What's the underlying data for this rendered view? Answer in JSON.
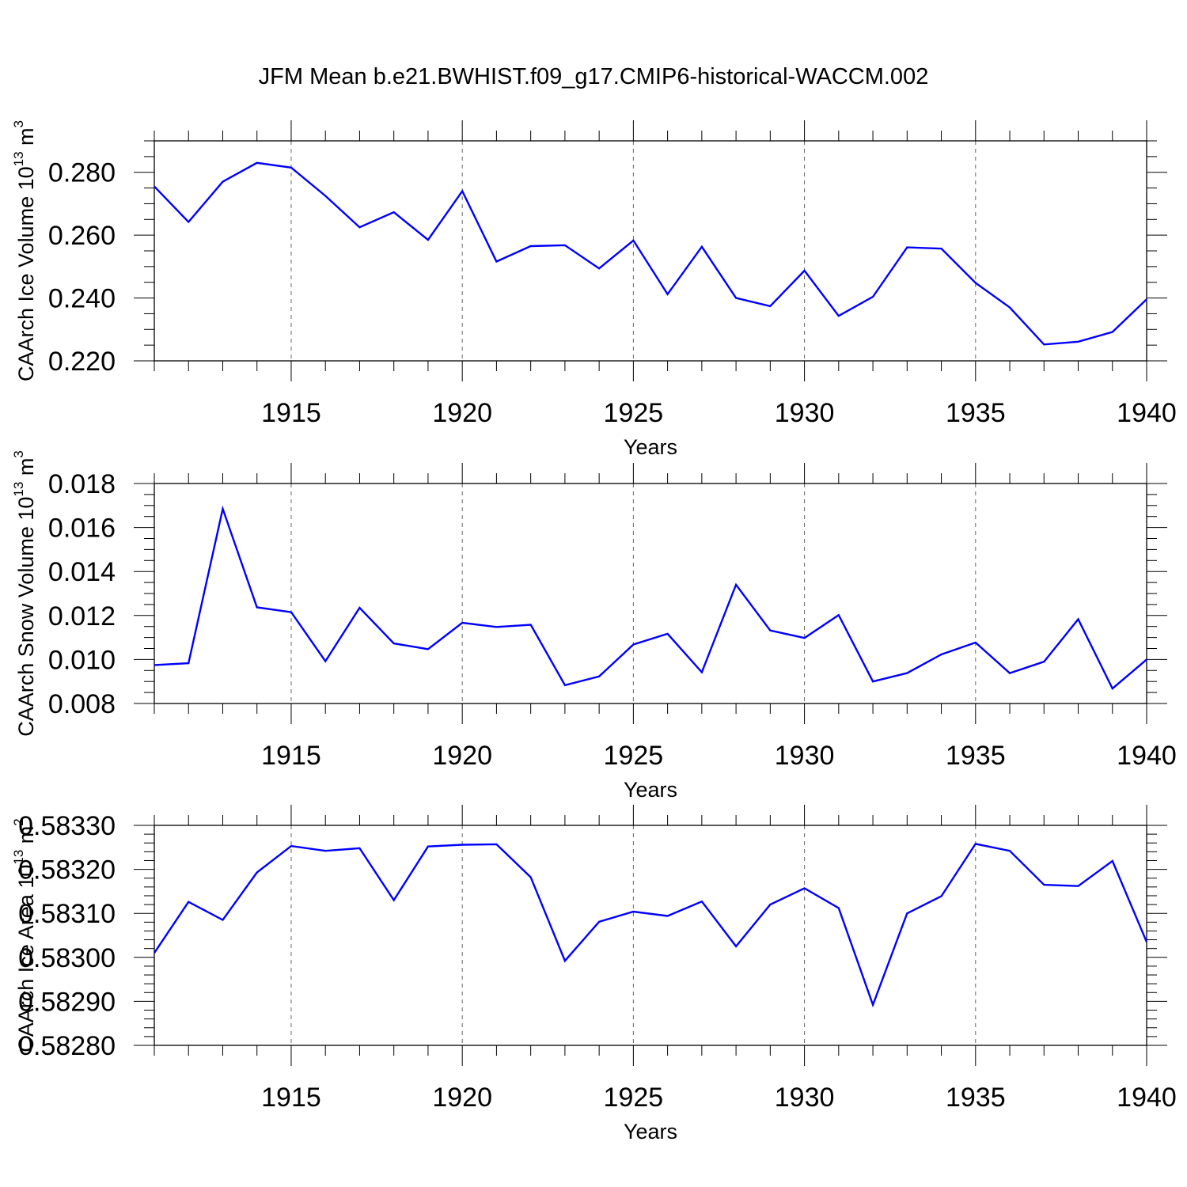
{
  "title": "JFM Mean b.e21.BWHIST.f09_g17.CMIP6-historical-WACCM.002",
  "chart_data": [
    {
      "type": "line",
      "ylabel": {
        "main": "CAArch Ice Volume 10",
        "exp": "13",
        "unit": "m",
        "unit_exp": "3"
      },
      "xlabel": "Years",
      "xlim": [
        1911,
        1940
      ],
      "ylim": [
        0.22,
        0.29
      ],
      "x_ticks": [
        1915,
        1920,
        1925,
        1930,
        1935,
        1940
      ],
      "x_tick_labels": [
        "1915",
        "1920",
        "1925",
        "1930",
        "1935",
        "1940"
      ],
      "y_ticks": [
        0.22,
        0.24,
        0.26,
        0.28
      ],
      "y_tick_labels": [
        "0.220",
        "0.240",
        "0.260",
        "0.280"
      ],
      "y_minor_step": 0.005,
      "grid": "dashed vertical at major x ticks",
      "color": "#0000ff",
      "x": [
        1911,
        1912,
        1913,
        1914,
        1915,
        1916,
        1917,
        1918,
        1919,
        1920,
        1921,
        1922,
        1923,
        1924,
        1925,
        1926,
        1927,
        1928,
        1929,
        1930,
        1931,
        1932,
        1933,
        1934,
        1935,
        1936,
        1937,
        1938,
        1939,
        1940
      ],
      "values": [
        0.2755,
        0.2642,
        0.277,
        0.283,
        0.2815,
        0.2725,
        0.2625,
        0.2673,
        0.2585,
        0.274,
        0.2516,
        0.2565,
        0.2568,
        0.2494,
        0.2583,
        0.2412,
        0.2563,
        0.24,
        0.2374,
        0.2487,
        0.2343,
        0.2404,
        0.2561,
        0.2557,
        0.2448,
        0.237,
        0.2252,
        0.2261,
        0.2292,
        0.2396
      ]
    },
    {
      "type": "line",
      "ylabel": {
        "main": "CAArch Snow Volume 10",
        "exp": "13",
        "unit": "m",
        "unit_exp": "3"
      },
      "xlabel": "Years",
      "xlim": [
        1911,
        1940
      ],
      "ylim": [
        0.008,
        0.018
      ],
      "x_ticks": [
        1915,
        1920,
        1925,
        1930,
        1935,
        1940
      ],
      "x_tick_labels": [
        "1915",
        "1920",
        "1925",
        "1930",
        "1935",
        "1940"
      ],
      "y_ticks": [
        0.008,
        0.01,
        0.012,
        0.014,
        0.016,
        0.018
      ],
      "y_tick_labels": [
        "0.008",
        "0.010",
        "0.012",
        "0.014",
        "0.016",
        "0.018"
      ],
      "y_minor_step": 0.0005,
      "grid": "dashed vertical at major x ticks",
      "color": "#0000ff",
      "x": [
        1911,
        1912,
        1913,
        1914,
        1915,
        1916,
        1917,
        1918,
        1919,
        1920,
        1921,
        1922,
        1923,
        1924,
        1925,
        1926,
        1927,
        1928,
        1929,
        1930,
        1931,
        1932,
        1933,
        1934,
        1935,
        1936,
        1937,
        1938,
        1939,
        1940
      ],
      "values": [
        0.00975,
        0.00983,
        0.01685,
        0.01237,
        0.01215,
        0.00992,
        0.01235,
        0.01073,
        0.01047,
        0.01167,
        0.01148,
        0.01158,
        0.00883,
        0.00923,
        0.01068,
        0.01117,
        0.00942,
        0.0134,
        0.01132,
        0.01098,
        0.01202,
        0.009,
        0.00938,
        0.01023,
        0.01077,
        0.00938,
        0.0099,
        0.01183,
        0.00868,
        0.01
      ]
    },
    {
      "type": "line",
      "ylabel": {
        "main": "CAArch Ice Area 10",
        "exp": "13",
        "unit": "m",
        "unit_exp": "2"
      },
      "xlabel": "Years",
      "xlim": [
        1911,
        1940
      ],
      "ylim": [
        0.5828,
        0.5833
      ],
      "x_ticks": [
        1915,
        1920,
        1925,
        1930,
        1935,
        1940
      ],
      "x_tick_labels": [
        "1915",
        "1920",
        "1925",
        "1930",
        "1935",
        "1940"
      ],
      "y_ticks": [
        0.5828,
        0.5829,
        0.583,
        0.5831,
        0.5832,
        0.5833
      ],
      "y_tick_labels": [
        "0.58280",
        "0.58290",
        "0.58300",
        "0.58310",
        "0.58320",
        "0.58330"
      ],
      "y_minor_step": 2e-05,
      "grid": "dashed vertical at major x ticks",
      "color": "#0000ff",
      "x": [
        1911,
        1912,
        1913,
        1914,
        1915,
        1916,
        1917,
        1918,
        1919,
        1920,
        1921,
        1922,
        1923,
        1924,
        1925,
        1926,
        1927,
        1928,
        1929,
        1930,
        1931,
        1932,
        1933,
        1934,
        1935,
        1936,
        1937,
        1938,
        1939,
        1940
      ],
      "values": [
        0.58301,
        0.583126,
        0.583085,
        0.583193,
        0.583253,
        0.583242,
        0.583248,
        0.58313,
        0.583252,
        0.583256,
        0.583257,
        0.583182,
        0.582992,
        0.583081,
        0.583104,
        0.583094,
        0.583127,
        0.583025,
        0.58312,
        0.583157,
        0.583112,
        0.582892,
        0.5831,
        0.583139,
        0.583258,
        0.583242,
        0.583165,
        0.583162,
        0.583219,
        0.583035
      ]
    }
  ]
}
